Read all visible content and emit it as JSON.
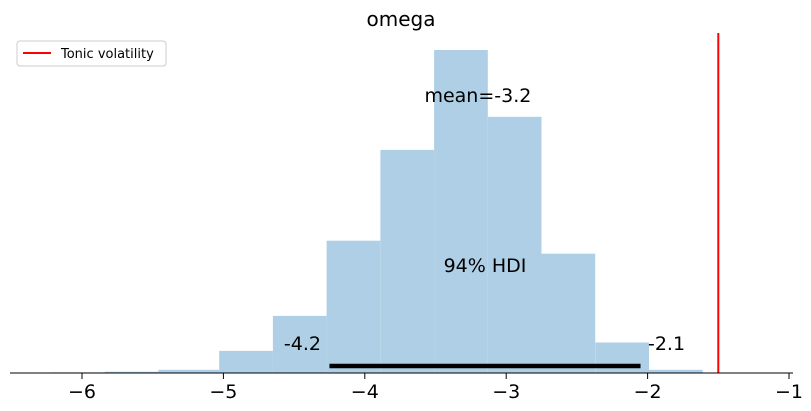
{
  "chart_data": {
    "type": "bar",
    "title": "omega",
    "xlabel": "",
    "ylabel": "",
    "xlim": [
      -6.5,
      -0.95
    ],
    "x_ticks": [
      -6,
      -5,
      -4,
      -3,
      -2,
      -1
    ],
    "x_tick_labels": [
      "−6",
      "−5",
      "−4",
      "−3",
      "−2",
      "−1"
    ],
    "y_axis_visible": false,
    "grid": false,
    "bins": [
      {
        "x0": -6.22,
        "x1": -5.84,
        "count": 1
      },
      {
        "x0": -5.84,
        "x1": -5.46,
        "count": 2
      },
      {
        "x0": -5.46,
        "x1": -5.03,
        "count": 5
      },
      {
        "x0": -5.03,
        "x1": -4.65,
        "count": 34
      },
      {
        "x0": -4.65,
        "x1": -4.27,
        "count": 88
      },
      {
        "x0": -4.27,
        "x1": -3.89,
        "count": 204
      },
      {
        "x0": -3.89,
        "x1": -3.51,
        "count": 344
      },
      {
        "x0": -3.51,
        "x1": -3.13,
        "count": 498
      },
      {
        "x0": -3.13,
        "x1": -2.75,
        "count": 395
      },
      {
        "x0": -2.75,
        "x1": -2.37,
        "count": 184
      },
      {
        "x0": -2.37,
        "x1": -1.99,
        "count": 47
      },
      {
        "x0": -1.99,
        "x1": -1.61,
        "count": 5
      }
    ],
    "bar_color": "#aecfe5",
    "mean": -3.2,
    "mean_label": "mean=-3.2",
    "hdi": {
      "low": -4.25,
      "high": -2.05,
      "label": "94% HDI",
      "low_label": "-4.2",
      "high_label": "-2.1"
    },
    "reference_line": {
      "x": -1.5,
      "name": "Tonic volatility",
      "color": "#ff0000"
    },
    "legend": {
      "position": "top-left",
      "entries": [
        "Tonic volatility"
      ]
    }
  }
}
